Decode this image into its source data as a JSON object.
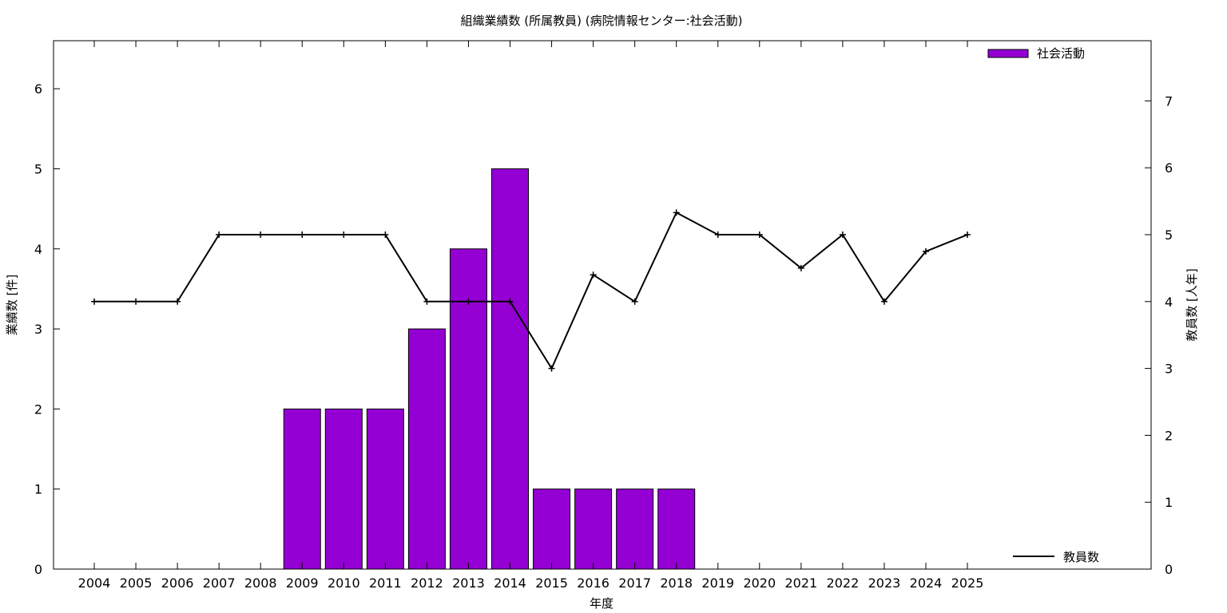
{
  "chart_data": {
    "type": "bar",
    "title": "組織業績数 (所属教員) (病院情報センター:社会活動)",
    "xlabel": "年度",
    "ylabel": "業績数 [件]",
    "y2label": "教員数 [人年]",
    "categories": [
      "2004",
      "2005",
      "2006",
      "2007",
      "2008",
      "2009",
      "2010",
      "2011",
      "2012",
      "2013",
      "2014",
      "2015",
      "2016",
      "2017",
      "2018",
      "2019",
      "2020",
      "2021",
      "2022",
      "2023",
      "2024",
      "2025"
    ],
    "ylim": [
      0,
      6.6
    ],
    "y2lim": [
      0,
      7.9
    ],
    "yticks": [
      0,
      1,
      2,
      3,
      4,
      5,
      6
    ],
    "y2ticks": [
      0,
      1,
      2,
      3,
      4,
      5,
      6,
      7
    ],
    "grid": false,
    "series": [
      {
        "name": "社会活動",
        "type": "bar",
        "axis": "left",
        "color": "#9400d3",
        "values": [
          0,
          0,
          0,
          0,
          0,
          2,
          2,
          2,
          3,
          4,
          5,
          1,
          1,
          1,
          1,
          0,
          0,
          0,
          0,
          0,
          0,
          0
        ]
      },
      {
        "name": "教員数",
        "type": "line",
        "axis": "right",
        "color": "#000000",
        "values": [
          4,
          4,
          4,
          5,
          5,
          5,
          5,
          5,
          4,
          4,
          4,
          3,
          4.4,
          4,
          5.33,
          5,
          5,
          4.5,
          5,
          4,
          4.75,
          5
        ]
      }
    ],
    "legend": {
      "bars_position": "top-right",
      "line_position": "bottom-right"
    }
  }
}
